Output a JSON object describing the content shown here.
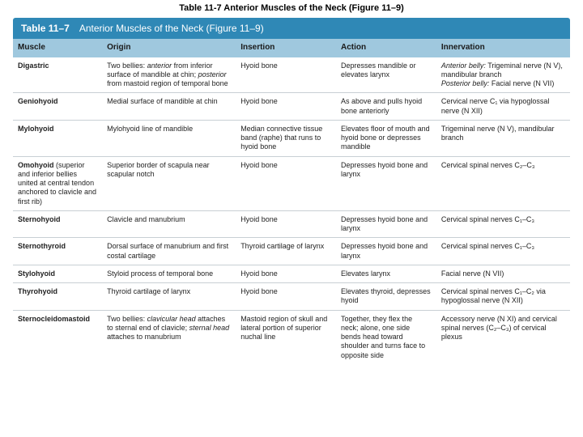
{
  "caption": "Table 11-7  Anterior Muscles of the Neck (Figure 11–9)",
  "titlebar": {
    "num": "Table 11–7",
    "text": "Anterior Muscles of the Neck (Figure 11–9)"
  },
  "headers": {
    "muscle": "Muscle",
    "origin": "Origin",
    "insertion": "Insertion",
    "action": "Action",
    "innervation": "Innervation"
  },
  "rows": [
    {
      "muscle": "Digastric",
      "origin_pre": "Two bellies: ",
      "origin_i1": "anterior",
      "origin_mid": " from inferior surface of mandible at chin; ",
      "origin_i2": "posterior",
      "origin_post": " from mastoid region of temporal bone",
      "insertion": "Hyoid bone",
      "action": "Depresses mandible or elevates larynx",
      "innerv_i1": "Anterior belly:",
      "innerv_t1": " Trigeminal nerve (N V), mandibular branch",
      "innerv_i2": "Posterior belly:",
      "innerv_t2": " Facial nerve (N VII)"
    },
    {
      "muscle": "Geniohyoid",
      "origin": "Medial surface of mandible at chin",
      "insertion": "Hyoid bone",
      "action": "As above and pulls hyoid bone anteriorly",
      "innervation": "Cervical nerve C₁ via hypoglossal nerve (N XII)"
    },
    {
      "muscle": "Mylohyoid",
      "origin": "Mylohyoid line of mandible",
      "insertion": "Median connective tissue band (raphe) that runs to hyoid bone",
      "action": "Elevates floor of mouth and hyoid bone or depresses mandible",
      "innervation": "Trigeminal nerve (N V), mandibular branch"
    },
    {
      "muscle": "Omohyoid",
      "muscle_sub": " (superior and inferior bellies united at central tendon anchored to clavicle and first rib)",
      "origin": "Superior border of scapula near scapular notch",
      "insertion": "Hyoid bone",
      "action": "Depresses hyoid bone and larynx",
      "innervation": "Cervical spinal nerves C₂–C₃"
    },
    {
      "muscle": "Sternohyoid",
      "origin": "Clavicle and manubrium",
      "insertion": "Hyoid bone",
      "action": "Depresses hyoid bone and larynx",
      "innervation": "Cervical spinal nerves C₁–C₃"
    },
    {
      "muscle": "Sternothyroid",
      "origin": "Dorsal surface of manubrium and first costal cartilage",
      "insertion": "Thyroid cartilage of larynx",
      "action": "Depresses hyoid bone and larynx",
      "innervation": "Cervical spinal nerves C₁–C₃"
    },
    {
      "muscle": "Stylohyoid",
      "origin": "Styloid process of temporal bone",
      "insertion": "Hyoid bone",
      "action": "Elevates larynx",
      "innervation": "Facial nerve (N VII)"
    },
    {
      "muscle": "Thyrohyoid",
      "origin": "Thyroid cartilage of larynx",
      "insertion": "Hyoid bone",
      "action": "Elevates thyroid, depresses hyoid",
      "innervation": "Cervical spinal nerves C₁–C₂ via hypoglossal nerve (N XII)"
    },
    {
      "muscle": "Sternocleidomastoid",
      "origin_pre": "Two bellies: ",
      "origin_i1": "clavicular head",
      "origin_mid": " attaches to sternal end of clavicle; ",
      "origin_i2": "sternal head",
      "origin_post": " attaches to manubrium",
      "insertion": "Mastoid region of skull and lateral portion of superior nuchal line",
      "action": "Together, they flex the neck; alone, one side bends head toward shoulder and turns face to opposite side",
      "innervation": "Accessory nerve (N XI) and cervical spinal nerves (C₂–C₃) of cervical plexus"
    }
  ],
  "colors": {
    "titlebar_bg": "#2f88b6",
    "header_bg": "#9fc8de",
    "border": "#c8cfd4"
  }
}
